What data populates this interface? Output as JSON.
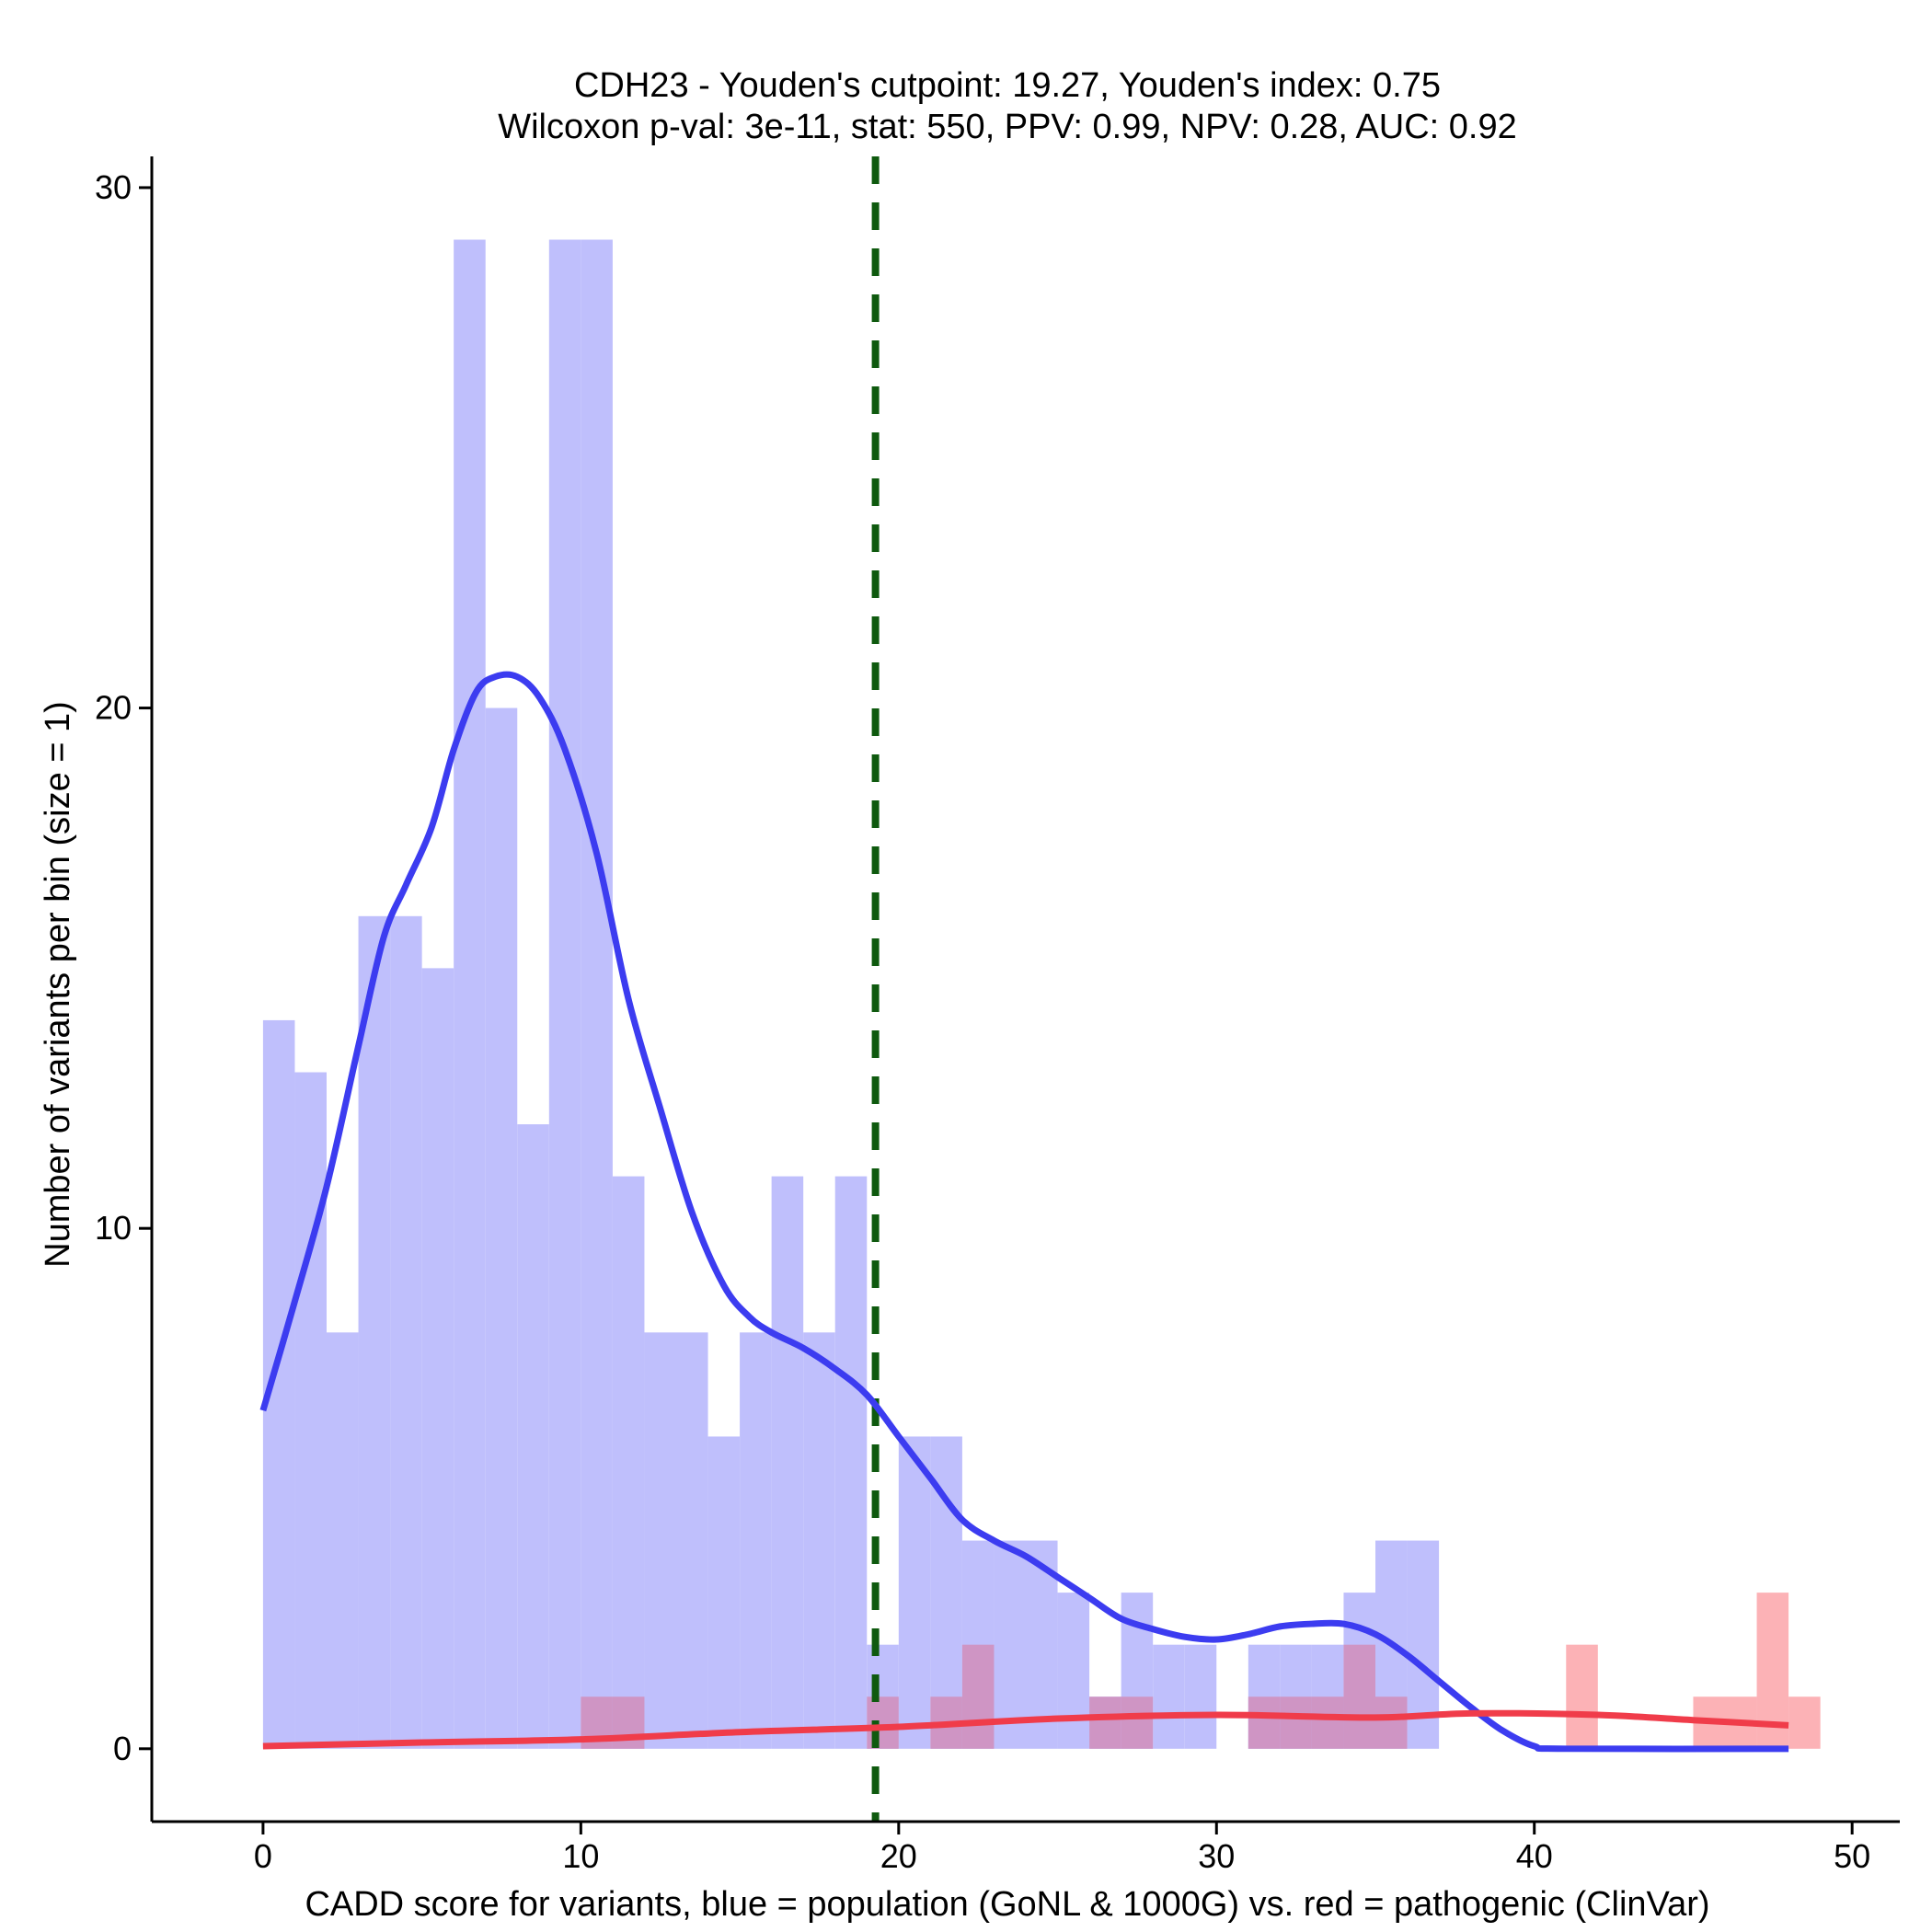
{
  "chart_data": {
    "type": "histogram",
    "title": [
      "CDH23 - Youden's cutpoint: 19.27, Youden's index: 0.75",
      "Wilcoxon p-val: 3e-11, stat: 550, PPV: 0.99, NPV: 0.28, AUC: 0.92"
    ],
    "xlabel": "CADD score for variants, blue = population (GoNL & 1000G) vs. red = pathogenic (ClinVar)",
    "ylabel": "Number of variants per bin (size = 1)",
    "xlim": [
      -3.5,
      51.5
    ],
    "ylim": [
      -1.4,
      30.6
    ],
    "xticks": [
      0,
      10,
      20,
      30,
      40,
      50
    ],
    "yticks": [
      0,
      10,
      20,
      30
    ],
    "bin_width": 1,
    "cutpoint": 19.27,
    "colors": {
      "population_bar": "#bfbffc",
      "pathogenic_bar": "#fcb2b6",
      "overlap_bar": "#cf95c4",
      "population_line": "#3c3cf0",
      "pathogenic_line": "#f03c4a",
      "cutpoint_line": "#0f5a0f",
      "axis": "#000000"
    },
    "series": [
      {
        "name": "population (GoNL & 1000G)",
        "bins": [
          {
            "x": 0,
            "count": 14
          },
          {
            "x": 1,
            "count": 13
          },
          {
            "x": 2,
            "count": 8
          },
          {
            "x": 3,
            "count": 16
          },
          {
            "x": 4,
            "count": 16
          },
          {
            "x": 5,
            "count": 15
          },
          {
            "x": 6,
            "count": 29
          },
          {
            "x": 7,
            "count": 20
          },
          {
            "x": 8,
            "count": 12
          },
          {
            "x": 9,
            "count": 29
          },
          {
            "x": 10,
            "count": 29
          },
          {
            "x": 11,
            "count": 11
          },
          {
            "x": 12,
            "count": 8
          },
          {
            "x": 13,
            "count": 8
          },
          {
            "x": 14,
            "count": 6
          },
          {
            "x": 15,
            "count": 8
          },
          {
            "x": 16,
            "count": 11
          },
          {
            "x": 17,
            "count": 8
          },
          {
            "x": 18,
            "count": 11
          },
          {
            "x": 19,
            "count": 2
          },
          {
            "x": 20,
            "count": 6
          },
          {
            "x": 21,
            "count": 6
          },
          {
            "x": 22,
            "count": 4
          },
          {
            "x": 23,
            "count": 4
          },
          {
            "x": 24,
            "count": 4
          },
          {
            "x": 25,
            "count": 3
          },
          {
            "x": 26,
            "count": 1
          },
          {
            "x": 27,
            "count": 3
          },
          {
            "x": 28,
            "count": 2
          },
          {
            "x": 29,
            "count": 2
          },
          {
            "x": 31,
            "count": 2
          },
          {
            "x": 32,
            "count": 2
          },
          {
            "x": 33,
            "count": 2
          },
          {
            "x": 34,
            "count": 3
          },
          {
            "x": 35,
            "count": 4
          },
          {
            "x": 36,
            "count": 4
          }
        ],
        "density": [
          [
            0,
            6.5
          ],
          [
            1,
            8.6
          ],
          [
            2,
            10.8
          ],
          [
            3,
            13.5
          ],
          [
            3.8,
            15.6
          ],
          [
            4.5,
            16.6
          ],
          [
            5.3,
            17.7
          ],
          [
            6,
            19.2
          ],
          [
            6.7,
            20.3
          ],
          [
            7.3,
            20.6
          ],
          [
            8,
            20.6
          ],
          [
            8.7,
            20.2
          ],
          [
            9.5,
            19.2
          ],
          [
            10.5,
            17.2
          ],
          [
            11.5,
            14.4
          ],
          [
            12.5,
            12.3
          ],
          [
            13.5,
            10.3
          ],
          [
            14.5,
            8.9
          ],
          [
            15.3,
            8.3
          ],
          [
            16,
            8
          ],
          [
            17,
            7.7
          ],
          [
            18,
            7.3
          ],
          [
            19,
            6.8
          ],
          [
            20,
            6
          ],
          [
            21,
            5.2
          ],
          [
            22,
            4.4
          ],
          [
            23,
            4
          ],
          [
            24,
            3.7
          ],
          [
            25,
            3.3
          ],
          [
            26,
            2.9
          ],
          [
            27,
            2.5
          ],
          [
            28,
            2.3
          ],
          [
            29,
            2.15
          ],
          [
            30,
            2.1
          ],
          [
            31,
            2.2
          ],
          [
            32,
            2.35
          ],
          [
            33,
            2.4
          ],
          [
            34,
            2.4
          ],
          [
            35,
            2.2
          ],
          [
            36,
            1.8
          ],
          [
            37,
            1.3
          ],
          [
            38,
            0.8
          ],
          [
            39,
            0.35
          ],
          [
            40,
            0.05
          ],
          [
            41,
            0
          ],
          [
            48,
            0
          ]
        ]
      },
      {
        "name": "pathogenic (ClinVar)",
        "bins": [
          {
            "x": 10,
            "count": 1
          },
          {
            "x": 11,
            "count": 1
          },
          {
            "x": 19,
            "count": 1
          },
          {
            "x": 21,
            "count": 1
          },
          {
            "x": 22,
            "count": 2
          },
          {
            "x": 26,
            "count": 1
          },
          {
            "x": 27,
            "count": 1
          },
          {
            "x": 31,
            "count": 1
          },
          {
            "x": 32,
            "count": 1
          },
          {
            "x": 33,
            "count": 1
          },
          {
            "x": 34,
            "count": 2
          },
          {
            "x": 35,
            "count": 1
          },
          {
            "x": 41,
            "count": 2
          },
          {
            "x": 45,
            "count": 1
          },
          {
            "x": 46,
            "count": 1
          },
          {
            "x": 47,
            "count": 3
          },
          {
            "x": 48,
            "count": 1
          }
        ],
        "density": [
          [
            0,
            0.05
          ],
          [
            5,
            0.12
          ],
          [
            10,
            0.18
          ],
          [
            15,
            0.32
          ],
          [
            20,
            0.42
          ],
          [
            25,
            0.58
          ],
          [
            30,
            0.65
          ],
          [
            35,
            0.6
          ],
          [
            38,
            0.68
          ],
          [
            42,
            0.65
          ],
          [
            45,
            0.55
          ],
          [
            48,
            0.45
          ]
        ]
      }
    ]
  }
}
